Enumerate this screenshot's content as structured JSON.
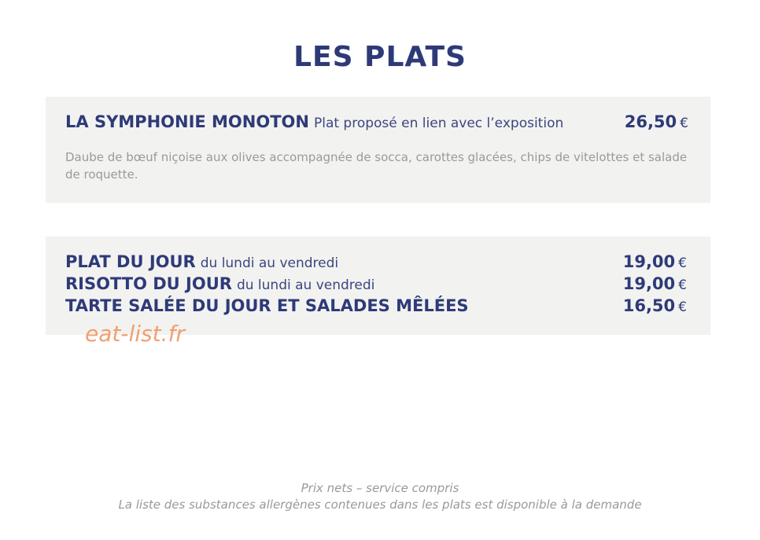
{
  "title": "LES PLATS",
  "featured": {
    "name": "LA SYMPHONIE MONOTON",
    "note": "Plat proposé en lien avec l’exposition",
    "price": "26,50",
    "currency": "€",
    "description": "Daube de bœuf niçoise aux olives accompagnée de socca, carottes glacées, chips de vitelottes et salade de roquette."
  },
  "items": [
    {
      "name": "PLAT DU JOUR",
      "note": "du lundi au vendredi",
      "price": "19,00",
      "currency": "€"
    },
    {
      "name": "RISOTTO DU JOUR",
      "note": "du lundi au vendredi",
      "price": "19,00",
      "currency": "€"
    },
    {
      "name": "TARTE SALÉE DU JOUR ET SALADES MÊLÉES",
      "price": "16,50",
      "currency": "€"
    }
  ],
  "watermark": "eat-list.fr",
  "footer": [
    "Prix nets – service compris",
    "La liste des substances allergènes contenues dans les plats est disponible à la demande"
  ]
}
